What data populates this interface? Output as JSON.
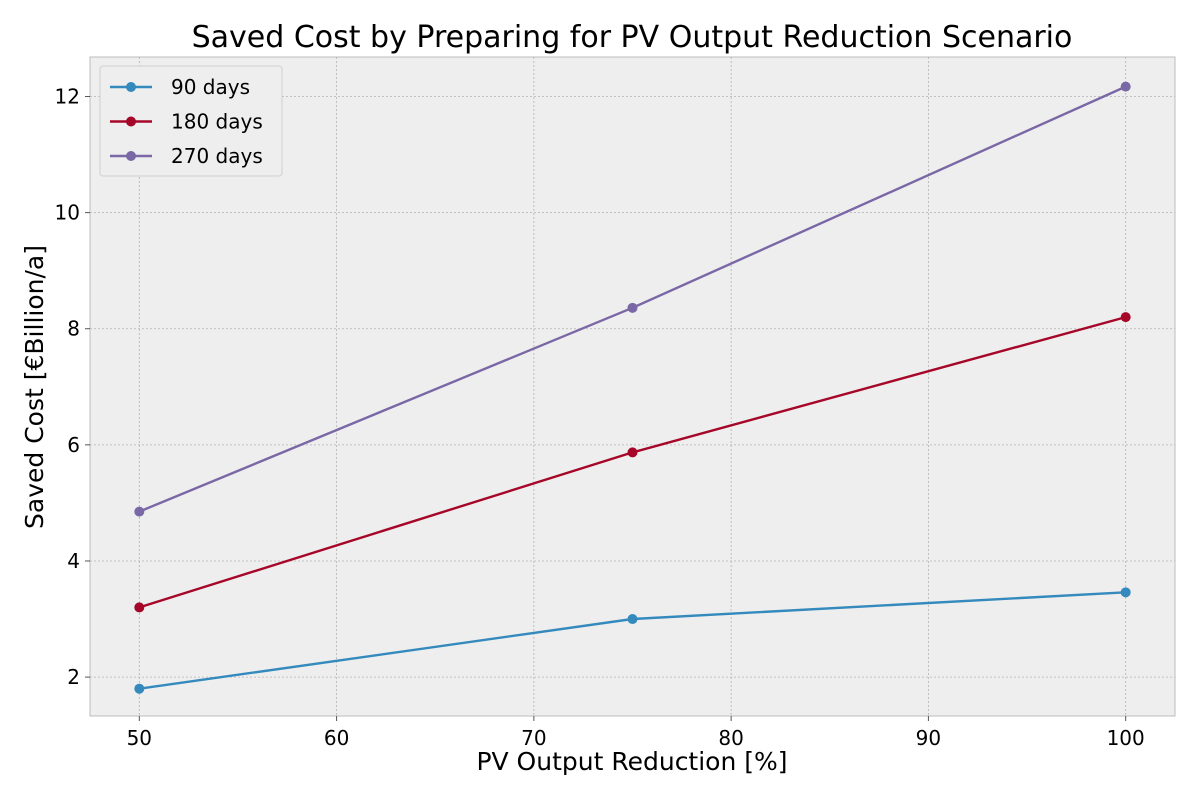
{
  "chart_data": {
    "type": "line",
    "title": "Saved Cost by Preparing for PV Output Reduction Scenario",
    "xlabel": "PV Output Reduction [%]",
    "ylabel": "Saved Cost [€Billion/a]",
    "x": [
      50,
      75,
      100
    ],
    "xlim": [
      47.5,
      102.5
    ],
    "ylim": [
      1.33,
      12.68
    ],
    "xticks": [
      50,
      60,
      70,
      80,
      90,
      100
    ],
    "yticks": [
      2,
      4,
      6,
      8,
      10,
      12
    ],
    "grid": true,
    "legend_position": "top-left",
    "series": [
      {
        "name": "90 days",
        "color": "#348abd",
        "values": [
          1.8,
          3.0,
          3.46
        ]
      },
      {
        "name": "180 days",
        "color": "#a60628",
        "values": [
          3.2,
          5.87,
          8.2
        ]
      },
      {
        "name": "270 days",
        "color": "#7a68a6",
        "values": [
          4.85,
          8.36,
          12.17
        ]
      }
    ]
  }
}
